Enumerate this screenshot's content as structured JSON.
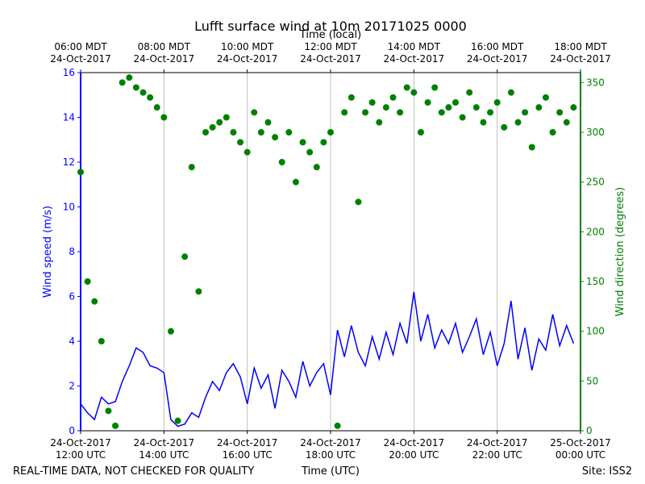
{
  "chart_data": {
    "type": "line",
    "title": "Lufft surface wind at 10m 20171025 0000",
    "x_label": "Time (UTC)",
    "x2_label": "Time (local)",
    "y_label": "Wind speed (m/s)",
    "y2_label": "Wind direction (degrees)",
    "footer_left": "REAL-TIME DATA, NOT CHECKED FOR QUALITY",
    "footer_right": "Site: ISS2",
    "grid": "x",
    "xlim": [
      "2017-10-24T12:00",
      "2017-10-25T00:00"
    ],
    "xticks": [
      {
        "value": "2017-10-24T12:00",
        "label": [
          "24-Oct-2017",
          "12:00 UTC"
        ]
      },
      {
        "value": "2017-10-24T14:00",
        "label": [
          "24-Oct-2017",
          "14:00 UTC"
        ]
      },
      {
        "value": "2017-10-24T16:00",
        "label": [
          "24-Oct-2017",
          "16:00 UTC"
        ]
      },
      {
        "value": "2017-10-24T18:00",
        "label": [
          "24-Oct-2017",
          "18:00 UTC"
        ]
      },
      {
        "value": "2017-10-24T20:00",
        "label": [
          "24-Oct-2017",
          "20:00 UTC"
        ]
      },
      {
        "value": "2017-10-24T22:00",
        "label": [
          "24-Oct-2017",
          "22:00 UTC"
        ]
      },
      {
        "value": "2017-10-25T00:00",
        "label": [
          "25-Oct-2017",
          "00:00 UTC"
        ]
      }
    ],
    "x2ticks": [
      {
        "value": "2017-10-24T12:00",
        "label": [
          "06:00 MDT",
          "24-Oct-2017"
        ]
      },
      {
        "value": "2017-10-24T14:00",
        "label": [
          "08:00 MDT",
          "24-Oct-2017"
        ]
      },
      {
        "value": "2017-10-24T16:00",
        "label": [
          "10:00 MDT",
          "24-Oct-2017"
        ]
      },
      {
        "value": "2017-10-24T18:00",
        "label": [
          "12:00 MDT",
          "24-Oct-2017"
        ]
      },
      {
        "value": "2017-10-24T20:00",
        "label": [
          "14:00 MDT",
          "24-Oct-2017"
        ]
      },
      {
        "value": "2017-10-24T22:00",
        "label": [
          "16:00 MDT",
          "24-Oct-2017"
        ]
      },
      {
        "value": "2017-10-25T00:00",
        "label": [
          "18:00 MDT",
          "24-Oct-2017"
        ]
      }
    ],
    "ylim": [
      0,
      16
    ],
    "yticks": [
      0,
      2,
      4,
      6,
      8,
      10,
      12,
      14,
      16
    ],
    "y2lim": [
      0,
      360
    ],
    "y2ticks": [
      0,
      50,
      100,
      150,
      200,
      250,
      300,
      350
    ],
    "x": [
      "2017-10-24T12:00",
      "2017-10-24T12:10",
      "2017-10-24T12:20",
      "2017-10-24T12:30",
      "2017-10-24T12:40",
      "2017-10-24T12:50",
      "2017-10-24T13:00",
      "2017-10-24T13:10",
      "2017-10-24T13:20",
      "2017-10-24T13:30",
      "2017-10-24T13:40",
      "2017-10-24T13:50",
      "2017-10-24T14:00",
      "2017-10-24T14:10",
      "2017-10-24T14:20",
      "2017-10-24T14:30",
      "2017-10-24T14:40",
      "2017-10-24T14:50",
      "2017-10-24T15:00",
      "2017-10-24T15:10",
      "2017-10-24T15:20",
      "2017-10-24T15:30",
      "2017-10-24T15:40",
      "2017-10-24T15:50",
      "2017-10-24T16:00",
      "2017-10-24T16:10",
      "2017-10-24T16:20",
      "2017-10-24T16:30",
      "2017-10-24T16:40",
      "2017-10-24T16:50",
      "2017-10-24T17:00",
      "2017-10-24T17:10",
      "2017-10-24T17:20",
      "2017-10-24T17:30",
      "2017-10-24T17:40",
      "2017-10-24T17:50",
      "2017-10-24T18:00",
      "2017-10-24T18:10",
      "2017-10-24T18:20",
      "2017-10-24T18:30",
      "2017-10-24T18:40",
      "2017-10-24T18:50",
      "2017-10-24T19:00",
      "2017-10-24T19:10",
      "2017-10-24T19:20",
      "2017-10-24T19:30",
      "2017-10-24T19:40",
      "2017-10-24T19:50",
      "2017-10-24T20:00",
      "2017-10-24T20:10",
      "2017-10-24T20:20",
      "2017-10-24T20:30",
      "2017-10-24T20:40",
      "2017-10-24T20:50",
      "2017-10-24T21:00",
      "2017-10-24T21:10",
      "2017-10-24T21:20",
      "2017-10-24T21:30",
      "2017-10-24T21:40",
      "2017-10-24T21:50",
      "2017-10-24T22:00",
      "2017-10-24T22:10",
      "2017-10-24T22:20",
      "2017-10-24T22:30",
      "2017-10-24T22:40",
      "2017-10-24T22:50",
      "2017-10-24T23:00",
      "2017-10-24T23:10",
      "2017-10-24T23:20",
      "2017-10-24T23:30",
      "2017-10-24T23:40",
      "2017-10-24T23:50"
    ],
    "series": [
      {
        "name": "Wind speed",
        "color": "#0000ff",
        "style": "line",
        "axis": "y",
        "values": [
          1.2,
          0.8,
          0.5,
          1.5,
          1.2,
          1.3,
          2.2,
          2.9,
          3.7,
          3.5,
          2.9,
          2.8,
          2.6,
          0.5,
          0.2,
          0.3,
          0.8,
          0.6,
          1.5,
          2.2,
          1.8,
          2.6,
          3.0,
          2.4,
          1.2,
          2.8,
          1.9,
          2.5,
          1.0,
          2.7,
          2.2,
          1.5,
          3.1,
          2.0,
          2.6,
          3.0,
          1.6,
          4.5,
          3.3,
          4.7,
          3.5,
          2.9,
          4.2,
          3.2,
          4.4,
          3.4,
          4.8,
          3.9,
          6.2,
          4.0,
          5.2,
          3.7,
          4.5,
          3.9,
          4.8,
          3.5,
          4.2,
          5.0,
          3.4,
          4.4,
          2.9,
          3.9,
          5.8,
          3.2,
          4.6,
          2.7,
          4.1,
          3.6,
          5.2,
          3.8,
          4.7,
          3.9
        ]
      },
      {
        "name": "Wind direction",
        "color": "#008000",
        "style": "scatter",
        "axis": "y2",
        "values": [
          260,
          150,
          130,
          90,
          20,
          5,
          350,
          355,
          345,
          340,
          335,
          325,
          315,
          100,
          10,
          175,
          265,
          140,
          300,
          305,
          310,
          315,
          300,
          290,
          280,
          320,
          300,
          310,
          295,
          270,
          300,
          250,
          290,
          280,
          265,
          290,
          300,
          5,
          320,
          335,
          230,
          320,
          330,
          310,
          325,
          335,
          320,
          345,
          340,
          300,
          330,
          345,
          320,
          325,
          330,
          315,
          340,
          325,
          310,
          320,
          330,
          305,
          340,
          310,
          320,
          285,
          325,
          335,
          300,
          320,
          310,
          325
        ]
      }
    ]
  }
}
